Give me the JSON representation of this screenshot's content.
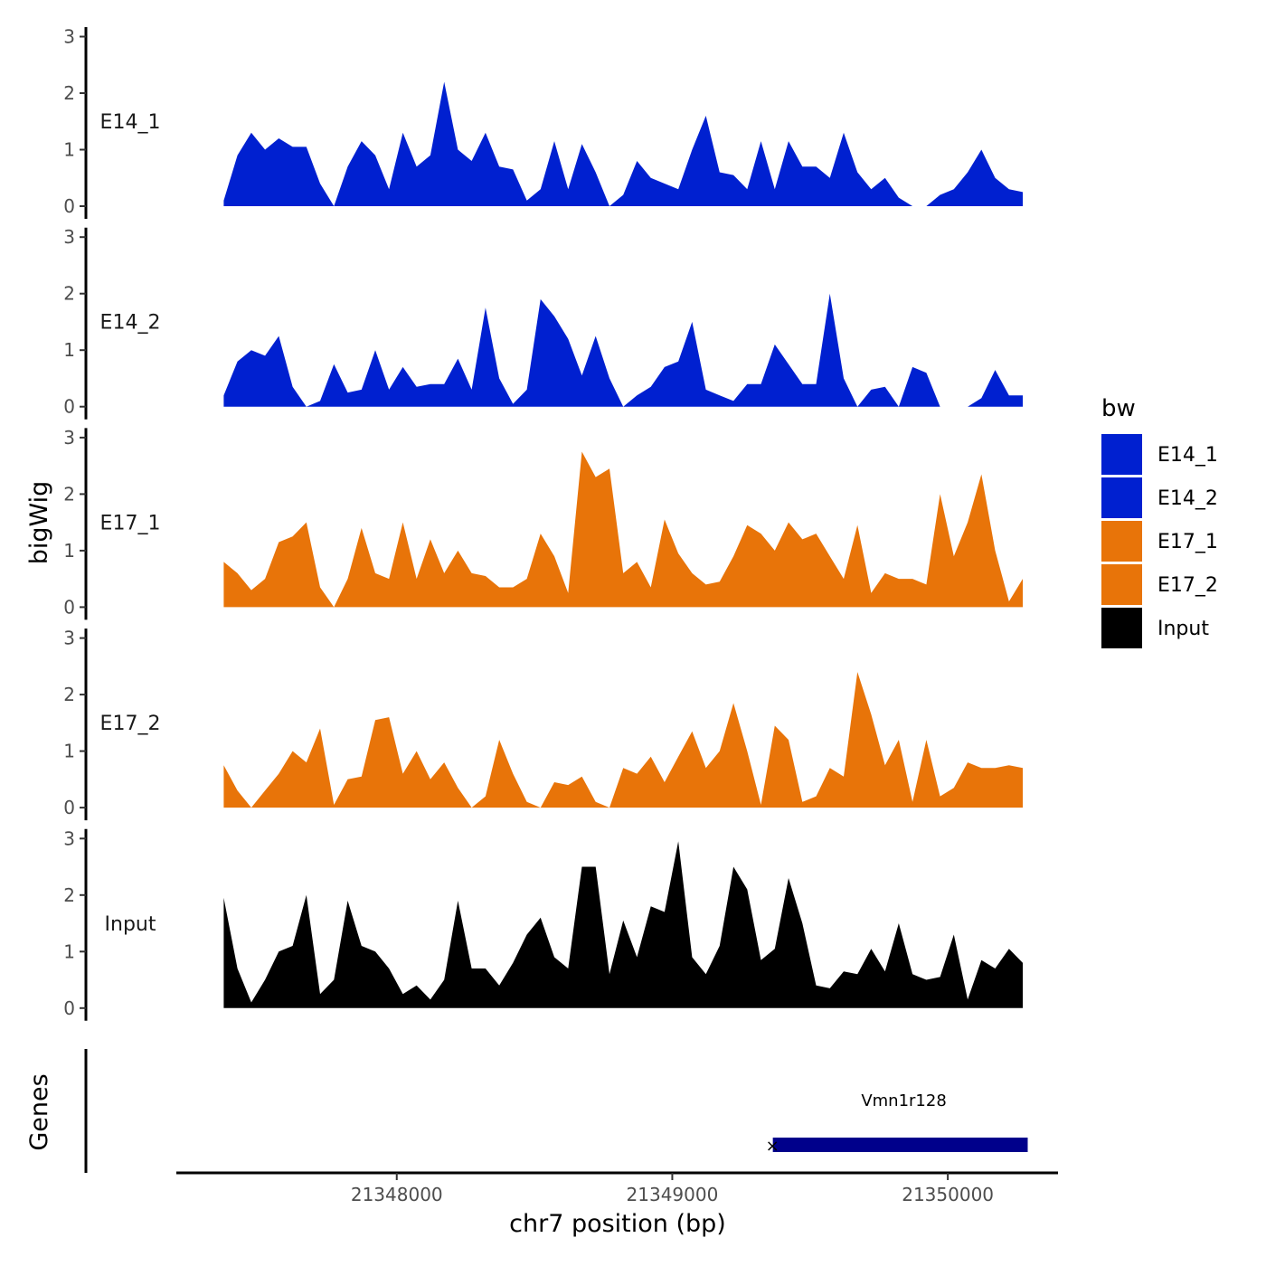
{
  "chart_data": {
    "type": "area",
    "chromosome": "chr7",
    "xlabel": "chr7 position (bp)",
    "ylabel": "bigWig",
    "xlim": [
      21347200,
      21350400
    ],
    "ylim": [
      0,
      3
    ],
    "x_ticks": [
      21348000,
      21349000,
      21350000
    ],
    "y_ticks": [
      0,
      1,
      2,
      3
    ],
    "legend": {
      "title": "bw",
      "position": "right",
      "items": [
        {
          "name": "E14_1",
          "color": "#0020D0"
        },
        {
          "name": "E14_2",
          "color": "#0020D0"
        },
        {
          "name": "E17_1",
          "color": "#E87409"
        },
        {
          "name": "E17_2",
          "color": "#E87409"
        },
        {
          "name": "Input",
          "color": "#000000"
        }
      ]
    },
    "x": [
      21347372,
      21347422,
      21347472,
      21347522,
      21347572,
      21347622,
      21347672,
      21347722,
      21347772,
      21347822,
      21347872,
      21347922,
      21347972,
      21348022,
      21348072,
      21348122,
      21348172,
      21348222,
      21348272,
      21348322,
      21348372,
      21348422,
      21348472,
      21348522,
      21348572,
      21348622,
      21348672,
      21348722,
      21348772,
      21348822,
      21348872,
      21348922,
      21348972,
      21349022,
      21349072,
      21349122,
      21349172,
      21349222,
      21349272,
      21349322,
      21349372,
      21349422,
      21349472,
      21349522,
      21349572,
      21349622,
      21349672,
      21349722,
      21349772,
      21349822,
      21349872,
      21349922,
      21349972,
      21350022,
      21350072,
      21350122,
      21350172,
      21350222,
      21350272
    ],
    "series": [
      {
        "name": "E14_1",
        "color": "#0020D0",
        "values": [
          0.1,
          0.9,
          1.3,
          1.0,
          1.2,
          1.05,
          1.05,
          0.4,
          0,
          0.7,
          1.15,
          0.9,
          0.3,
          1.3,
          0.7,
          0.9,
          2.2,
          1.0,
          0.8,
          1.3,
          0.7,
          0.65,
          0.1,
          0.3,
          1.15,
          0.3,
          1.1,
          0.6,
          0,
          0.2,
          0.8,
          0.5,
          0.4,
          0.3,
          1.0,
          1.6,
          0.6,
          0.55,
          0.3,
          1.15,
          0.3,
          1.15,
          0.7,
          0.7,
          0.5,
          1.3,
          0.6,
          0.3,
          0.5,
          0.15,
          0,
          0,
          0.2,
          0.3,
          0.6,
          1.0,
          0.5,
          0.3,
          0.25
        ]
      },
      {
        "name": "E14_2",
        "color": "#0020D0",
        "values": [
          0.2,
          0.8,
          1.0,
          0.9,
          1.25,
          0.35,
          0,
          0.1,
          0.75,
          0.25,
          0.3,
          1.0,
          0.3,
          0.7,
          0.35,
          0.4,
          0.4,
          0.85,
          0.3,
          1.75,
          0.5,
          0.05,
          0.3,
          1.9,
          1.6,
          1.2,
          0.55,
          1.25,
          0.5,
          0,
          0.2,
          0.35,
          0.7,
          0.8,
          1.5,
          0.3,
          0.2,
          0.1,
          0.4,
          0.4,
          1.1,
          0.75,
          0.4,
          0.4,
          2.0,
          0.5,
          0,
          0.3,
          0.35,
          0,
          0.7,
          0.6,
          0,
          0,
          0,
          0.15,
          0.65,
          0.2,
          0.2
        ]
      },
      {
        "name": "E17_1",
        "color": "#E87409",
        "values": [
          0.8,
          0.6,
          0.3,
          0.5,
          1.15,
          1.25,
          1.5,
          0.35,
          0,
          0.5,
          1.4,
          0.6,
          0.5,
          1.5,
          0.5,
          1.2,
          0.6,
          1.0,
          0.6,
          0.55,
          0.35,
          0.35,
          0.5,
          1.3,
          0.9,
          0.25,
          2.75,
          2.3,
          2.45,
          0.6,
          0.8,
          0.35,
          1.55,
          0.95,
          0.6,
          0.4,
          0.45,
          0.9,
          1.45,
          1.3,
          1.0,
          1.5,
          1.2,
          1.3,
          0.9,
          0.5,
          1.45,
          0.25,
          0.6,
          0.5,
          0.5,
          0.4,
          2.0,
          0.9,
          1.5,
          2.35,
          1.0,
          0.1,
          0.5
        ]
      },
      {
        "name": "E17_2",
        "color": "#E87409",
        "values": [
          0.75,
          0.3,
          0,
          0.3,
          0.6,
          1.0,
          0.8,
          1.4,
          0.05,
          0.5,
          0.55,
          1.55,
          1.6,
          0.6,
          1.0,
          0.5,
          0.8,
          0.35,
          0,
          0.2,
          1.2,
          0.6,
          0.1,
          0,
          0.45,
          0.4,
          0.55,
          0.1,
          0,
          0.7,
          0.6,
          0.9,
          0.45,
          0.9,
          1.35,
          0.7,
          1.0,
          1.85,
          1.0,
          0.05,
          1.45,
          1.2,
          0.1,
          0.2,
          0.7,
          0.55,
          2.4,
          1.65,
          0.75,
          1.2,
          0.1,
          1.2,
          0.2,
          0.35,
          0.8,
          0.7,
          0.7,
          0.75,
          0.7
        ]
      },
      {
        "name": "Input",
        "color": "#000000",
        "values": [
          1.95,
          0.7,
          0.1,
          0.5,
          1.0,
          1.1,
          2.0,
          0.25,
          0.5,
          1.9,
          1.1,
          1.0,
          0.7,
          0.25,
          0.4,
          0.15,
          0.5,
          1.9,
          0.7,
          0.7,
          0.4,
          0.8,
          1.3,
          1.6,
          0.9,
          0.7,
          2.5,
          2.5,
          0.6,
          1.55,
          0.9,
          1.8,
          1.7,
          2.95,
          0.9,
          0.6,
          1.1,
          2.5,
          2.1,
          0.85,
          1.05,
          2.3,
          1.5,
          0.4,
          0.35,
          0.65,
          0.6,
          1.05,
          0.65,
          1.5,
          0.6,
          0.5,
          0.55,
          1.3,
          0.15,
          0.85,
          0.7,
          1.05,
          0.8
        ]
      }
    ],
    "genes": {
      "track_label": "Genes",
      "items": [
        {
          "name": "Vmn1r128",
          "start": 21349365,
          "end": 21350290,
          "strand": "+",
          "color": "#00008B"
        }
      ]
    }
  }
}
